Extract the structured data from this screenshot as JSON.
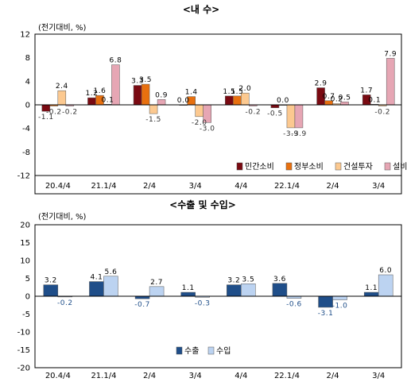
{
  "chart_data": [
    {
      "type": "bar",
      "title": "<내    수>",
      "ylabel": "(전기대비, %)",
      "ylim": [
        -12,
        12
      ],
      "yticks": [
        12,
        8,
        4,
        0,
        -4,
        -8,
        -12
      ],
      "grid": false,
      "legend_position": "bottom-right",
      "categories": [
        "20.4/4",
        "21.1/4",
        "2/4",
        "3/4",
        "4/4",
        "22.1/4",
        "2/4",
        "3/4"
      ],
      "series": [
        {
          "name": "민간소비",
          "color": "#7a0a12",
          "values": [
            -1.1,
            1.2,
            3.3,
            0.0,
            1.5,
            -0.5,
            2.9,
            1.7
          ],
          "labels": [
            "-1.1",
            "1.2",
            "3.3",
            "0.0",
            "1.5",
            "-0.5",
            "2.9",
            "1.7"
          ]
        },
        {
          "name": "정부소비",
          "color": "#e8700f",
          "values": [
            -0.2,
            1.6,
            3.5,
            1.4,
            1.5,
            0.0,
            0.7,
            0.1
          ],
          "labels": [
            "-0.2",
            "1.6",
            "3.5",
            "1.4",
            "1.5",
            "0.0",
            "0.7",
            "0.1"
          ]
        },
        {
          "name": "건설투자",
          "color": "#fcc990",
          "values": [
            2.4,
            0.1,
            -1.5,
            -2.0,
            2.0,
            -3.9,
            0.2,
            -0.2
          ],
          "labels": [
            "2.4",
            "0.1",
            "-1.5",
            "-2.0",
            "2.0",
            "-3.9",
            "0.2",
            "-0.2"
          ]
        },
        {
          "name": "설비투자",
          "color": "#e6a6b4",
          "values": [
            -0.2,
            6.8,
            0.9,
            -3.0,
            -0.2,
            -3.9,
            0.5,
            7.9
          ],
          "labels": [
            "-0.2",
            "6.8",
            "0.9",
            "-3.0",
            "-0.2",
            "-3.9",
            "0.5",
            "7.9"
          ]
        }
      ]
    },
    {
      "type": "bar",
      "title": "<수출 및 수입>",
      "ylabel": "(전기대비, %)",
      "ylim": [
        -20,
        20
      ],
      "yticks": [
        20,
        15,
        10,
        5,
        0,
        -5,
        -10,
        -15,
        -20
      ],
      "grid": false,
      "legend_position": "bottom-center",
      "categories": [
        "20.4/4",
        "21.1/4",
        "2/4",
        "3/4",
        "4/4",
        "22.1/4",
        "2/4",
        "3/4"
      ],
      "series": [
        {
          "name": "수출",
          "color": "#1f4e89",
          "values": [
            3.2,
            4.1,
            -0.7,
            1.1,
            3.2,
            3.6,
            -3.1,
            1.1
          ],
          "labels": [
            "3.2",
            "4.1",
            "-0.7",
            "1.1",
            "3.2",
            "3.6",
            "-3.1",
            "1.1"
          ]
        },
        {
          "name": "수입",
          "color": "#bcd3f1",
          "values": [
            -0.2,
            5.6,
            2.7,
            -0.3,
            3.5,
            -0.6,
            -1.0,
            6.0
          ],
          "labels": [
            "-0.2",
            "5.6",
            "2.7",
            "-0.3",
            "3.5",
            "-0.6",
            "-1.0",
            "6.0"
          ]
        }
      ]
    }
  ]
}
